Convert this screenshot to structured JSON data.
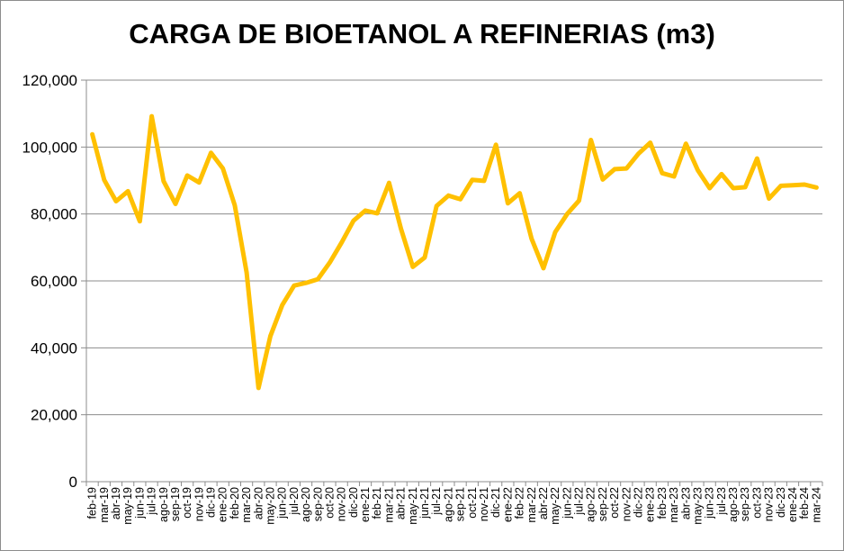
{
  "chart_data": {
    "type": "line",
    "title": "CARGA DE BIOETANOL A REFINERIAS (m3)",
    "xlabel": "",
    "ylabel": "",
    "ylim": [
      0,
      120000
    ],
    "yticks": [
      0,
      20000,
      40000,
      60000,
      80000,
      100000,
      120000
    ],
    "ytick_labels": [
      "0",
      "20,000",
      "40,000",
      "60,000",
      "80,000",
      "100,000",
      "120,000"
    ],
    "grid": true,
    "legend": "none",
    "line_color": "#FFC000",
    "categories": [
      "feb-19",
      "mar-19",
      "abr-19",
      "may-19",
      "jun-19",
      "jul-19",
      "ago-19",
      "sep-19",
      "oct-19",
      "nov-19",
      "dic-19",
      "ene-20",
      "feb-20",
      "mar-20",
      "abr-20",
      "may-20",
      "jun-20",
      "jul-20",
      "ago-20",
      "sep-20",
      "oct-20",
      "nov-20",
      "dic-20",
      "ene-21",
      "feb-21",
      "mar-21",
      "abr-21",
      "may-21",
      "jun-21",
      "jul-21",
      "ago-21",
      "sep-21",
      "oct-21",
      "nov-21",
      "dic-21",
      "ene-22",
      "feb-22",
      "mar-22",
      "abr-22",
      "may-22",
      "jun-22",
      "jul-22",
      "ago-22",
      "sep-22",
      "oct-22",
      "nov-22",
      "dic-22",
      "ene-23",
      "feb-23",
      "mar-23",
      "abr-23",
      "may-23",
      "jun-23",
      "jul-23",
      "ago-23",
      "sep-23",
      "oct-23",
      "nov-23",
      "dic-23",
      "ene-24",
      "feb-24",
      "mar-24"
    ],
    "series": [
      {
        "values": [
          103800,
          90200,
          83800,
          86800,
          77800,
          109200,
          89800,
          83000,
          91500,
          89400,
          98300,
          93600,
          82600,
          62500,
          28000,
          43500,
          52800,
          58600,
          59400,
          60500,
          65500,
          71500,
          78000,
          81000,
          80200,
          89300,
          75600,
          64200,
          67000,
          82400,
          85500,
          84400,
          90200,
          89900,
          100700,
          83200,
          86200,
          72600,
          63800,
          74600,
          80000,
          84000,
          102100,
          90300,
          93400,
          93600,
          98000,
          101300,
          92200,
          91200,
          101000,
          93100,
          87700,
          91900,
          87700,
          88000,
          96600,
          84600,
          88400,
          88600,
          88800,
          87900
        ]
      }
    ]
  }
}
